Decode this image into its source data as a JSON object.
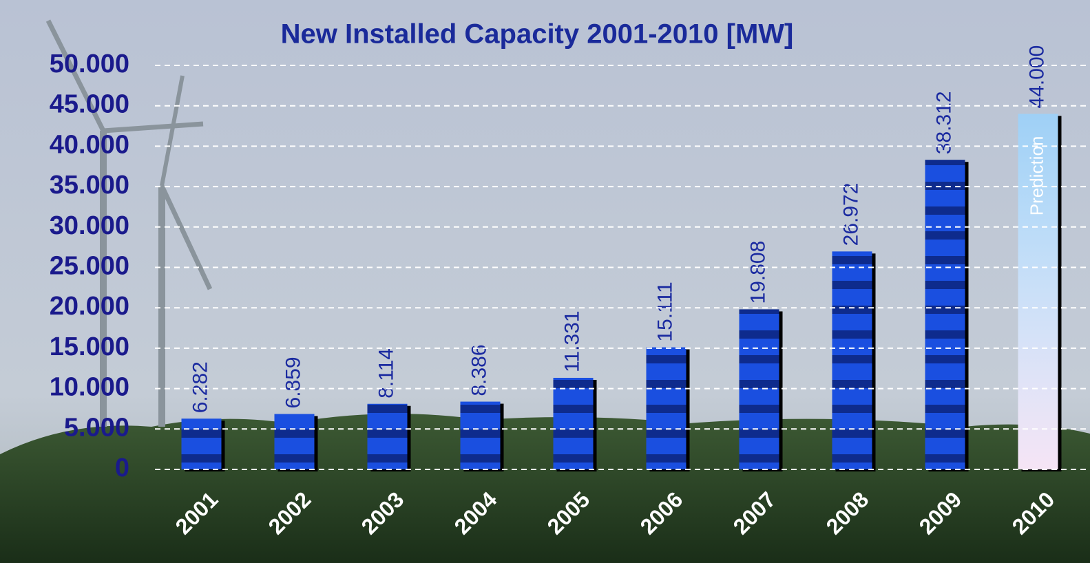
{
  "chart_data": {
    "type": "bar",
    "title": "New Installed Capacity 2001-2010 [MW]",
    "categories": [
      "2001",
      "2002",
      "2003",
      "2004",
      "2005",
      "2006",
      "2007",
      "2008",
      "2009",
      "2010"
    ],
    "values": [
      6282,
      6859,
      8114,
      8386,
      11331,
      15111,
      19808,
      26972,
      38312,
      44000
    ],
    "value_labels": [
      "6.282",
      "6.859",
      "8.114",
      "8.386",
      "11.331",
      "15.111",
      "19.808",
      "26.972",
      "38.312",
      "44.000"
    ],
    "colors": [
      "#1a4fe0",
      "#1a4fe0",
      "#1a4fe0",
      "#1a4fe0",
      "#1a4fe0",
      "#1a4fe0",
      "#1a4fe0",
      "#1a4fe0",
      "#1a4fe0",
      "#9fd0f6"
    ],
    "annotation": "Prediction",
    "ylim": [
      0,
      50000
    ],
    "yticks": [
      0,
      {
        "value": 5000,
        "label": "5.000"
      },
      {
        "value": 10000,
        "label": "10.000"
      },
      {
        "value": 15000,
        "label": "15.000"
      },
      {
        "value": 20000,
        "label": "20.000"
      },
      {
        "value": 25000,
        "label": "25.000"
      },
      {
        "value": 30000,
        "label": "30.000"
      },
      {
        "value": 35000,
        "label": "35.000"
      },
      {
        "value": 40000,
        "label": "40.000"
      },
      {
        "value": 45000,
        "label": "45.000"
      },
      {
        "value": 50000,
        "label": "50.000"
      }
    ],
    "grid": true
  }
}
